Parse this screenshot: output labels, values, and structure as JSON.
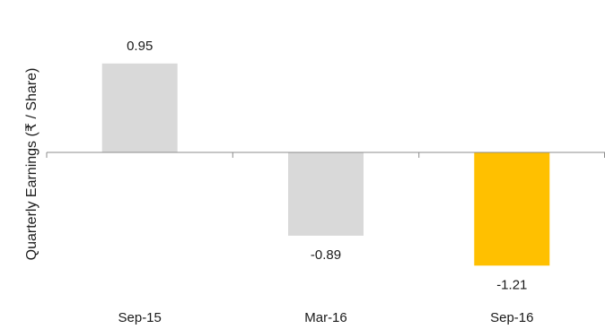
{
  "chart_data": {
    "type": "bar",
    "title": "",
    "xlabel": "",
    "ylabel": "Quarterly Earnings (₹ / Share)",
    "categories": [
      "Sep-15",
      "Mar-16",
      "Sep-16"
    ],
    "values": [
      0.95,
      -0.89,
      -1.21
    ],
    "data_labels": [
      "0.95",
      "-0.89",
      "-1.21"
    ],
    "colors": [
      "#d9d9d9",
      "#d9d9d9",
      "#ffc000"
    ],
    "ylim": [
      -1.5,
      1.3
    ],
    "grid": false,
    "legend": "none"
  }
}
